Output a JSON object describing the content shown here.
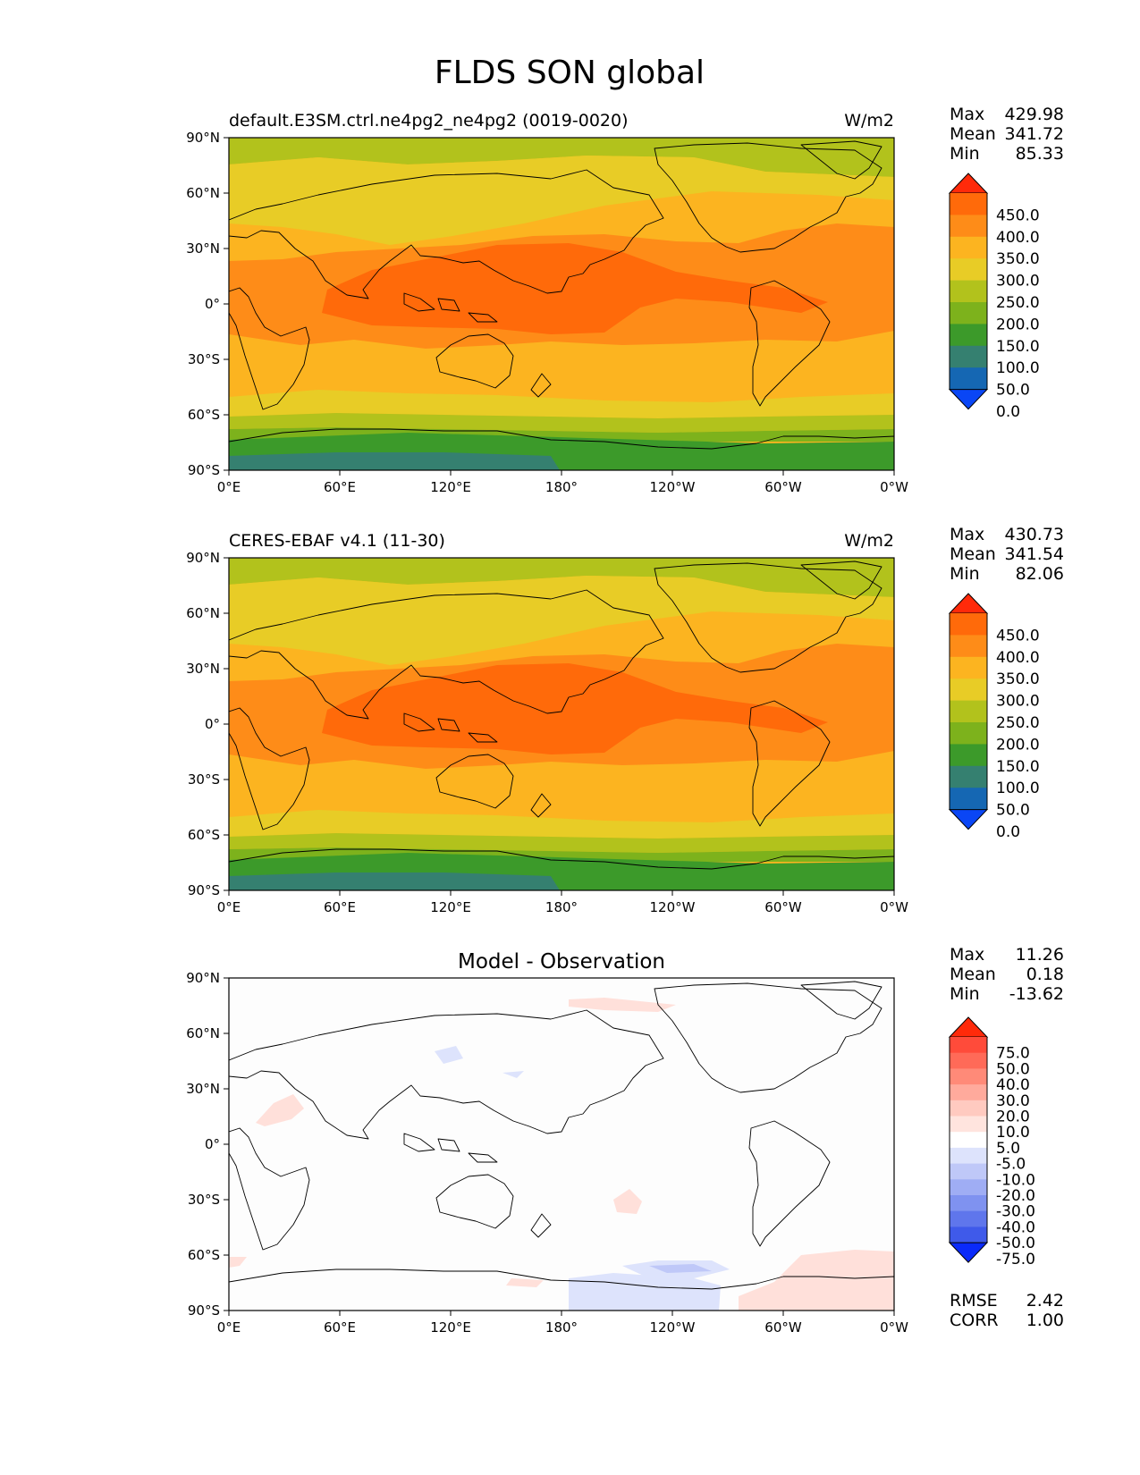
{
  "figure": {
    "title": "FLDS SON global"
  },
  "panels": [
    {
      "left_title": "default.E3SM.ctrl.ne4pg2_ne4pg2 (0019-0020)",
      "center_title": "",
      "units": "W/m2",
      "stats": {
        "max_label": "Max",
        "max": "429.98",
        "mean_label": "Mean",
        "mean": "341.72",
        "min_label": "Min",
        "min": "85.33"
      },
      "colorbar": "abs"
    },
    {
      "left_title": "CERES-EBAF v4.1 (11-30)",
      "center_title": "",
      "units": "W/m2",
      "stats": {
        "max_label": "Max",
        "max": "430.73",
        "mean_label": "Mean",
        "mean": "341.54",
        "min_label": "Min",
        "min": "82.06"
      },
      "colorbar": "abs"
    },
    {
      "left_title": "",
      "center_title": "Model - Observation",
      "units": "",
      "stats": {
        "max_label": "Max",
        "max": "11.26",
        "mean_label": "Mean",
        "mean": "0.18",
        "min_label": "Min",
        "min": "-13.62"
      },
      "colorbar": "diff",
      "extra_stats": {
        "rmse_label": "RMSE",
        "rmse": "2.42",
        "corr_label": "CORR",
        "corr": "1.00"
      }
    }
  ],
  "axes": {
    "lat_ticks": [
      "90°N",
      "60°N",
      "30°N",
      "0°",
      "30°S",
      "60°S",
      "90°S"
    ],
    "lon_ticks": [
      "0°E",
      "60°E",
      "120°E",
      "180°",
      "120°W",
      "60°W",
      "0°W"
    ]
  },
  "colorbars": {
    "abs": {
      "labels": [
        "450.0",
        "400.0",
        "350.0",
        "300.0",
        "250.0",
        "200.0",
        "150.0",
        "100.0",
        "50.0",
        "0.0"
      ],
      "colors": [
        "#ff2a0a",
        "#ff6a0a",
        "#fe8c18",
        "#fcb420",
        "#e8cc26",
        "#b2c21c",
        "#7db21c",
        "#3c9a2a",
        "#358070",
        "#1567b3",
        "#0a46f5"
      ]
    },
    "diff": {
      "labels": [
        "75.0",
        "50.0",
        "40.0",
        "30.0",
        "20.0",
        "10.0",
        "5.0",
        "-5.0",
        "-10.0",
        "-20.0",
        "-30.0",
        "-40.0",
        "-50.0",
        "-75.0"
      ],
      "colors": [
        "#ff2a0a",
        "#ff4b3a",
        "#ff6a58",
        "#ff8a78",
        "#ffaa9c",
        "#ffcac0",
        "#ffe4de",
        "#ffffff",
        "#dde3fc",
        "#bfc8f8",
        "#9fadf4",
        "#7f92f0",
        "#5f76ec",
        "#3f5aea",
        "#0a2afa"
      ]
    }
  },
  "map_colors": {
    "abs": {
      "polar_n": "#b2c21c",
      "band_60n": "#e8cc26",
      "mid_lat": "#fcb420",
      "tropics": "#fe8c18",
      "warm_pool": "#ff6a0a",
      "band_45s": "#fcb420",
      "band_55s": "#e8cc26",
      "band_62s": "#b2c21c",
      "band_68s": "#7db21c",
      "antarctic": "#3c9a2a",
      "antarctic_core": "#358070"
    },
    "diff": {
      "background": "#fdfdfd",
      "pos": "#ffe0da",
      "neg": "#dde3fc",
      "neg2": "#bfc8f8"
    }
  }
}
